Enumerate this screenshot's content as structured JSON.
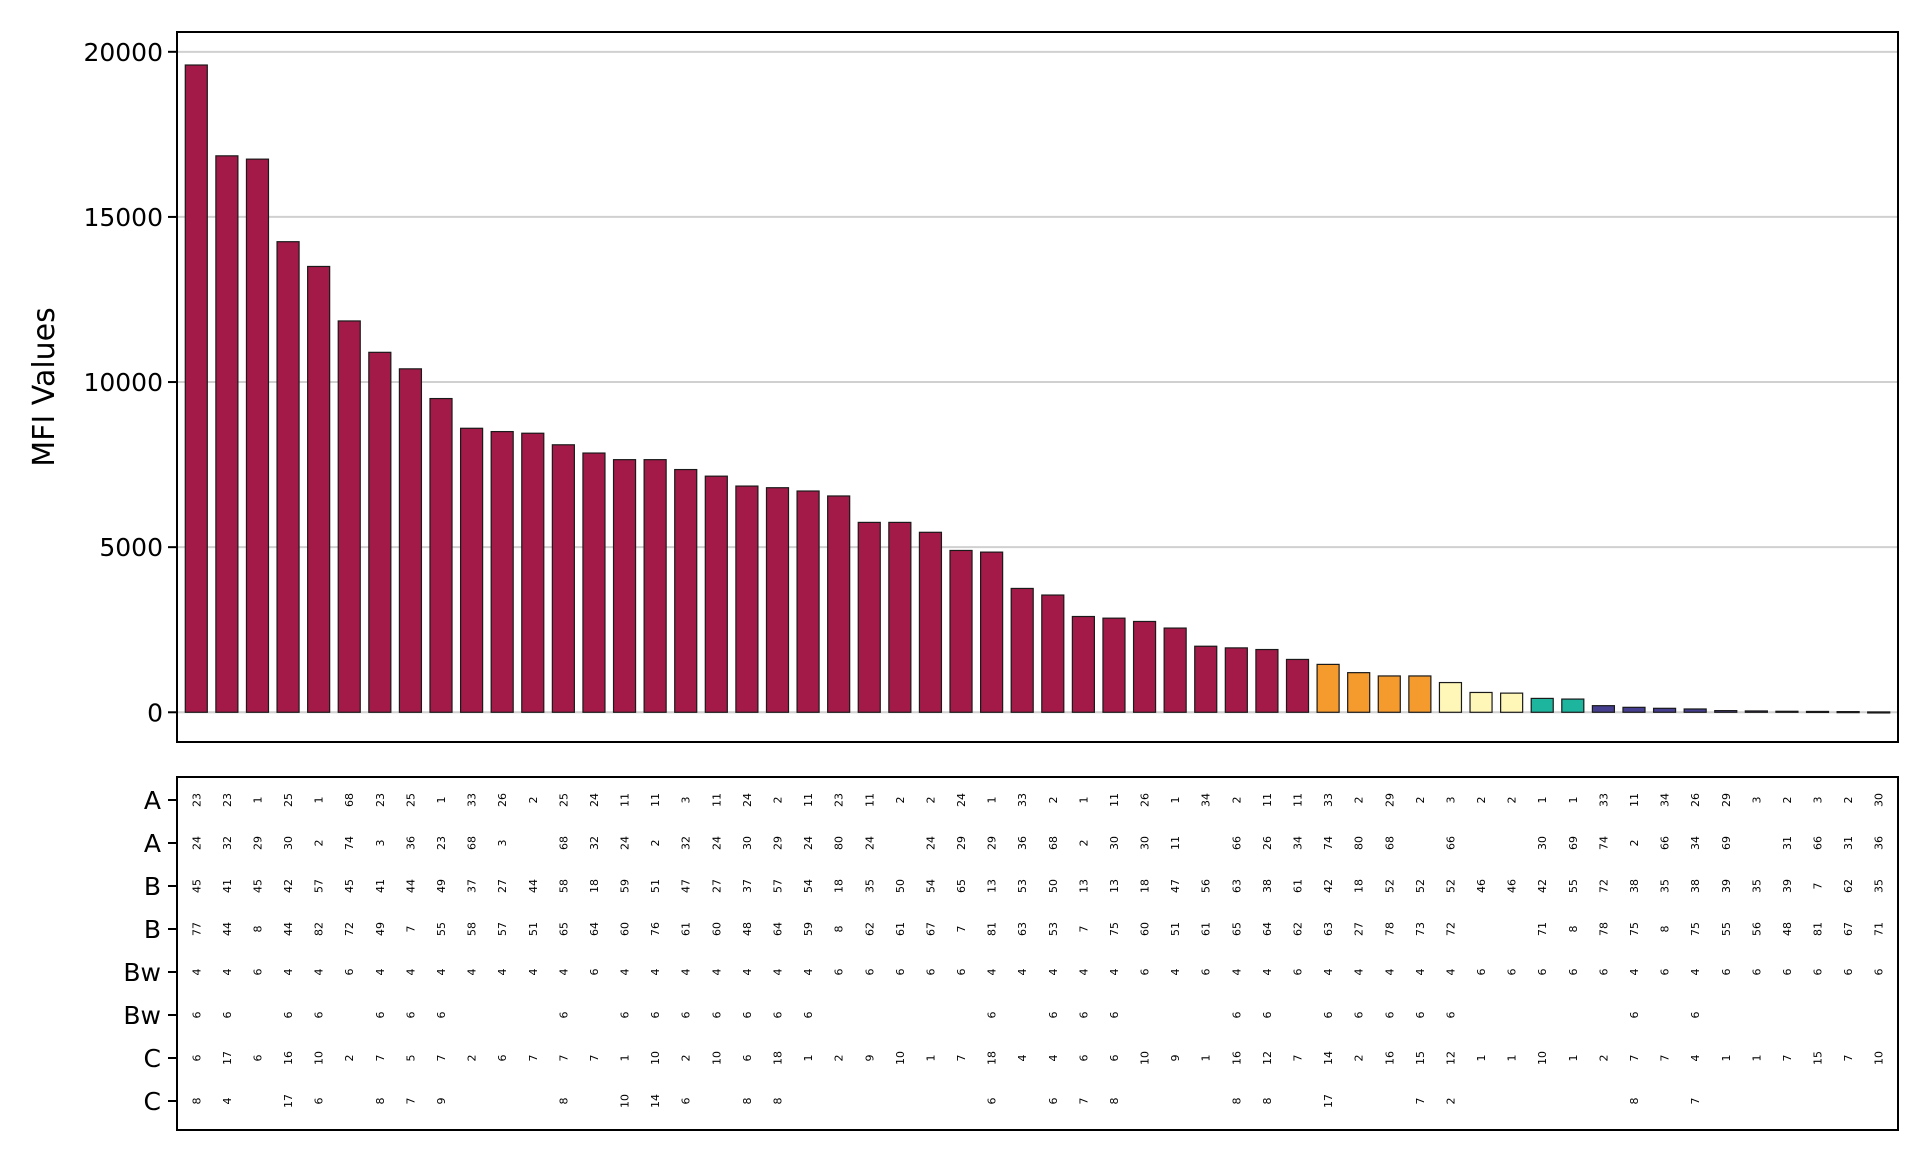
{
  "chart_data": {
    "type": "bar",
    "ylabel": "MFI Values",
    "ylim": [
      -900,
      20600
    ],
    "yticks": [
      0,
      5000,
      10000,
      15000,
      20000
    ],
    "grid": true,
    "values": [
      19600,
      16850,
      16750,
      14250,
      13500,
      11850,
      10900,
      10400,
      9500,
      8600,
      8500,
      8450,
      8100,
      7850,
      7650,
      7650,
      7350,
      7150,
      6850,
      6800,
      6700,
      6550,
      5750,
      5750,
      5450,
      4900,
      4850,
      3750,
      3550,
      2900,
      2850,
      2750,
      2550,
      2000,
      1950,
      1900,
      1600,
      1450,
      1200,
      1100,
      1100,
      900,
      600,
      580,
      420,
      400,
      200,
      150,
      120,
      100,
      50,
      40,
      30,
      25,
      20,
      10
    ],
    "colors": [
      "#a31a48",
      "#a31a48",
      "#a31a48",
      "#a31a48",
      "#a31a48",
      "#a31a48",
      "#a31a48",
      "#a31a48",
      "#a31a48",
      "#a31a48",
      "#a31a48",
      "#a31a48",
      "#a31a48",
      "#a31a48",
      "#a31a48",
      "#a31a48",
      "#a31a48",
      "#a31a48",
      "#a31a48",
      "#a31a48",
      "#a31a48",
      "#a31a48",
      "#a31a48",
      "#a31a48",
      "#a31a48",
      "#a31a48",
      "#a31a48",
      "#a31a48",
      "#a31a48",
      "#a31a48",
      "#a31a48",
      "#a31a48",
      "#a31a48",
      "#a31a48",
      "#a31a48",
      "#a31a48",
      "#a31a48",
      "#f59b2e",
      "#f59b2e",
      "#f59b2e",
      "#f59b2e",
      "#fff7b8",
      "#fff7b8",
      "#fff7b8",
      "#1eb59f",
      "#1eb59f",
      "#463f8f",
      "#463f8f",
      "#463f8f",
      "#463f8f",
      "#463f8f",
      "#463f8f",
      "#463f8f",
      "#463f8f",
      "#463f8f",
      "#463f8f"
    ],
    "table": {
      "row_labels": [
        "A",
        "A",
        "B",
        "B",
        "Bw",
        "Bw",
        "C",
        "C"
      ],
      "rows": [
        [
          "23",
          "23",
          "1",
          "25",
          "1",
          "68",
          "23",
          "25",
          "1",
          "33",
          "26",
          "2",
          "25",
          "24",
          "11",
          "11",
          "3",
          "11",
          "24",
          "2",
          "11",
          "23",
          "11",
          "2",
          "2",
          "24",
          "1",
          "33",
          "2",
          "1",
          "11",
          "26",
          "1",
          "34",
          "2",
          "11",
          "11",
          "33",
          "2",
          "29",
          "2",
          "3",
          "2",
          "2",
          "1",
          "1",
          "33",
          "11",
          "34",
          "26",
          "29",
          "3",
          "2",
          "3",
          "2",
          "30"
        ],
        [
          "24",
          "32",
          "29",
          "30",
          "2",
          "74",
          "3",
          "36",
          "23",
          "68",
          "3",
          "",
          "68",
          "32",
          "24",
          "2",
          "32",
          "24",
          "30",
          "29",
          "24",
          "80",
          "24",
          "",
          "24",
          "29",
          "29",
          "36",
          "68",
          "2",
          "30",
          "30",
          "11",
          "",
          "66",
          "26",
          "34",
          "74",
          "80",
          "68",
          "",
          "66",
          "",
          "",
          "30",
          "69",
          "74",
          "2",
          "66",
          "34",
          "69",
          "",
          "31",
          "66",
          "31",
          "36"
        ],
        [
          "45",
          "41",
          "45",
          "42",
          "57",
          "45",
          "41",
          "44",
          "49",
          "37",
          "27",
          "44",
          "58",
          "18",
          "59",
          "51",
          "47",
          "27",
          "37",
          "57",
          "54",
          "18",
          "35",
          "50",
          "54",
          "65",
          "13",
          "53",
          "50",
          "13",
          "13",
          "18",
          "47",
          "56",
          "63",
          "38",
          "61",
          "42",
          "18",
          "52",
          "52",
          "52",
          "46",
          "46",
          "42",
          "55",
          "72",
          "38",
          "35",
          "38",
          "39",
          "35",
          "39",
          "7",
          "62",
          "35"
        ],
        [
          "77",
          "44",
          "8",
          "44",
          "82",
          "72",
          "49",
          "7",
          "55",
          "58",
          "57",
          "51",
          "65",
          "64",
          "60",
          "76",
          "61",
          "60",
          "48",
          "64",
          "59",
          "8",
          "62",
          "61",
          "67",
          "7",
          "81",
          "63",
          "53",
          "7",
          "75",
          "60",
          "51",
          "61",
          "65",
          "64",
          "62",
          "63",
          "27",
          "78",
          "73",
          "72",
          "",
          "",
          "71",
          "8",
          "78",
          "75",
          "8",
          "75",
          "55",
          "56",
          "48",
          "81",
          "67",
          "71"
        ],
        [
          "4",
          "4",
          "6",
          "4",
          "4",
          "6",
          "4",
          "4",
          "4",
          "4",
          "4",
          "4",
          "4",
          "6",
          "4",
          "4",
          "4",
          "4",
          "4",
          "4",
          "4",
          "6",
          "6",
          "6",
          "6",
          "6",
          "4",
          "4",
          "4",
          "4",
          "4",
          "6",
          "4",
          "6",
          "4",
          "4",
          "6",
          "4",
          "4",
          "4",
          "4",
          "4",
          "6",
          "6",
          "6",
          "6",
          "6",
          "4",
          "6",
          "4",
          "6",
          "6",
          "6",
          "6",
          "6",
          "6"
        ],
        [
          "6",
          "6",
          "",
          "6",
          "6",
          "",
          "6",
          "6",
          "6",
          "",
          "",
          "",
          "6",
          "",
          "6",
          "6",
          "6",
          "6",
          "6",
          "6",
          "6",
          "",
          "",
          "",
          "",
          "",
          "6",
          "",
          "6",
          "6",
          "6",
          "",
          "",
          "",
          "6",
          "6",
          "",
          "6",
          "6",
          "6",
          "6",
          "6",
          "",
          "",
          "",
          "",
          "",
          "6",
          "",
          "6",
          "",
          "",
          "",
          "",
          "",
          ""
        ],
        [
          "6",
          "17",
          "6",
          "16",
          "10",
          "2",
          "7",
          "5",
          "7",
          "2",
          "6",
          "7",
          "7",
          "7",
          "1",
          "10",
          "2",
          "10",
          "6",
          "18",
          "1",
          "2",
          "9",
          "10",
          "1",
          "7",
          "18",
          "4",
          "4",
          "6",
          "6",
          "10",
          "9",
          "1",
          "16",
          "12",
          "7",
          "14",
          "2",
          "16",
          "15",
          "12",
          "1",
          "1",
          "10",
          "1",
          "2",
          "7",
          "7",
          "4",
          "1",
          "1",
          "7",
          "15",
          "7",
          "10"
        ],
        [
          "8",
          "4",
          "",
          "17",
          "6",
          "",
          "8",
          "7",
          "9",
          "",
          "",
          "",
          "8",
          "",
          "10",
          "14",
          "6",
          "",
          "8",
          "8",
          "",
          "",
          "",
          "",
          "",
          "",
          "6",
          "",
          "6",
          "7",
          "8",
          "",
          "",
          "",
          "8",
          "8",
          "",
          "17",
          "",
          "",
          "7",
          "2",
          "",
          "",
          "",
          "",
          "",
          "8",
          "",
          "7",
          "",
          "",
          "",
          "",
          "",
          ""
        ]
      ]
    }
  }
}
